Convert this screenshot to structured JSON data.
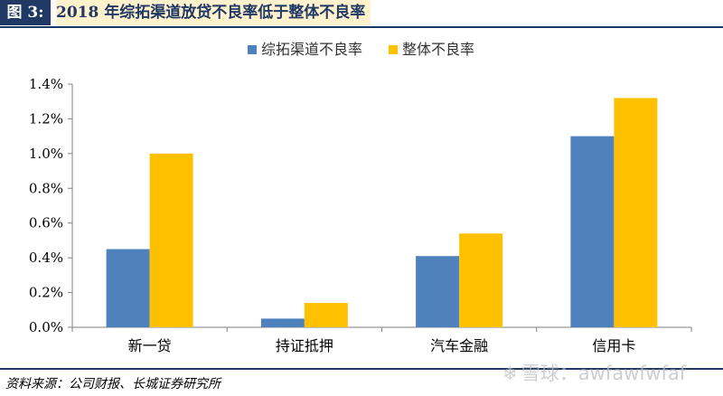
{
  "header": {
    "label": "图 3:",
    "title": "2018 年综拓渠道放贷不良率低于整体不良率"
  },
  "footer": {
    "source": "资料来源：公司财报、长城证券研究所",
    "watermark": "雪球：awfawfwfaf",
    "watermark_icon": "snowball-icon"
  },
  "colors": {
    "series1": "#4f81bd",
    "series2": "#ffc000",
    "header_bg": "#1f3864",
    "title_bg": "#fff2cc"
  },
  "chart_data": {
    "type": "bar",
    "title": "",
    "xlabel": "",
    "ylabel": "",
    "categories": [
      "新一贷",
      "持证抵押",
      "汽车金融",
      "信用卡"
    ],
    "series": [
      {
        "name": "综拓渠道不良率",
        "values": [
          0.45,
          0.05,
          0.41,
          1.1
        ]
      },
      {
        "name": "整体不良率",
        "values": [
          1.0,
          0.14,
          0.54,
          1.32
        ]
      }
    ],
    "ylim": [
      0,
      1.4
    ],
    "yticks": [
      0,
      0.2,
      0.4,
      0.6,
      0.8,
      1.0,
      1.2,
      1.4
    ],
    "ytick_labels": [
      "0.0%",
      "0.2%",
      "0.4%",
      "0.6%",
      "0.8%",
      "1.0%",
      "1.2%",
      "1.4%"
    ],
    "unit": "%",
    "grid": false,
    "legend_position": "top-right"
  }
}
